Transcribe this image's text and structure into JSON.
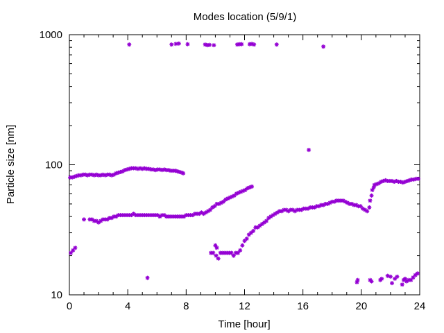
{
  "chart_data": {
    "type": "scatter",
    "title": "Modes location (5/9/1)",
    "xlabel": "Time [hour]",
    "ylabel": "Particle size [nm]",
    "xlim": [
      0,
      24
    ],
    "ylim": [
      10,
      1000
    ],
    "yscale": "log",
    "grid": false,
    "legend": "none",
    "marker_color": "#9400d3",
    "x_ticks": [
      0,
      4,
      8,
      12,
      16,
      20,
      24
    ],
    "x_tick_labels": [
      "0",
      "4",
      "8",
      "12",
      "16",
      "20",
      "24"
    ],
    "y_ticks": [
      10,
      100,
      1000
    ],
    "y_tick_labels": [
      "10",
      "100",
      "1000"
    ],
    "series": [
      {
        "points": [
          [
            0.05,
            80
          ],
          [
            0.2,
            80
          ],
          [
            0.35,
            81
          ],
          [
            0.5,
            82
          ],
          [
            0.65,
            83
          ],
          [
            0.8,
            83
          ],
          [
            0.95,
            84
          ],
          [
            1.1,
            84
          ],
          [
            1.25,
            83
          ],
          [
            1.4,
            84
          ],
          [
            1.55,
            84
          ],
          [
            1.7,
            83
          ],
          [
            1.85,
            84
          ],
          [
            2.0,
            83
          ],
          [
            2.15,
            83
          ],
          [
            2.3,
            84
          ],
          [
            2.45,
            83
          ],
          [
            2.6,
            84
          ],
          [
            2.75,
            84
          ],
          [
            2.9,
            83
          ],
          [
            3.05,
            84
          ],
          [
            3.2,
            86
          ],
          [
            3.35,
            87
          ],
          [
            3.5,
            88
          ],
          [
            3.65,
            89
          ],
          [
            3.8,
            91
          ],
          [
            3.95,
            92
          ],
          [
            4.1,
            93
          ],
          [
            4.25,
            94
          ],
          [
            4.4,
            94
          ],
          [
            4.55,
            94
          ],
          [
            4.7,
            93
          ],
          [
            4.85,
            94
          ],
          [
            5.0,
            93
          ],
          [
            5.15,
            94
          ],
          [
            5.3,
            93
          ],
          [
            5.45,
            93
          ],
          [
            5.6,
            92
          ],
          [
            5.75,
            92
          ],
          [
            5.9,
            91
          ],
          [
            6.05,
            92
          ],
          [
            6.2,
            92
          ],
          [
            6.35,
            91
          ],
          [
            6.5,
            92
          ],
          [
            6.65,
            91
          ],
          [
            6.8,
            91
          ],
          [
            6.95,
            90
          ],
          [
            7.1,
            90
          ],
          [
            7.25,
            90
          ],
          [
            7.4,
            89
          ],
          [
            7.55,
            88
          ],
          [
            7.7,
            87
          ],
          [
            7.8,
            86
          ],
          [
            0.1,
            21
          ],
          [
            0.25,
            22
          ],
          [
            0.4,
            23
          ],
          [
            1.0,
            38
          ],
          [
            1.4,
            38
          ],
          [
            1.55,
            38
          ],
          [
            1.7,
            37
          ],
          [
            1.85,
            37
          ],
          [
            2.0,
            36
          ],
          [
            2.15,
            37
          ],
          [
            2.3,
            38
          ],
          [
            2.45,
            38
          ],
          [
            2.6,
            38
          ],
          [
            2.75,
            39
          ],
          [
            2.9,
            39
          ],
          [
            3.05,
            40
          ],
          [
            3.2,
            40
          ],
          [
            3.35,
            41
          ],
          [
            3.5,
            41
          ],
          [
            3.65,
            41
          ],
          [
            3.8,
            41
          ],
          [
            3.95,
            41
          ],
          [
            4.1,
            41
          ],
          [
            4.25,
            41
          ],
          [
            4.4,
            42
          ],
          [
            4.55,
            41
          ],
          [
            4.7,
            41
          ],
          [
            4.85,
            41
          ],
          [
            5.0,
            41
          ],
          [
            5.15,
            41
          ],
          [
            5.3,
            41
          ],
          [
            5.45,
            41
          ],
          [
            5.6,
            41
          ],
          [
            5.75,
            41
          ],
          [
            5.9,
            41
          ],
          [
            6.05,
            41
          ],
          [
            6.2,
            40
          ],
          [
            6.35,
            41
          ],
          [
            6.5,
            41
          ],
          [
            6.65,
            40
          ],
          [
            6.8,
            40
          ],
          [
            6.95,
            40
          ],
          [
            7.1,
            40
          ],
          [
            7.25,
            40
          ],
          [
            7.4,
            40
          ],
          [
            7.55,
            40
          ],
          [
            7.7,
            40
          ],
          [
            7.85,
            40
          ],
          [
            8.0,
            41
          ],
          [
            8.15,
            41
          ],
          [
            8.3,
            41
          ],
          [
            8.45,
            41
          ],
          [
            8.6,
            42
          ],
          [
            8.75,
            42
          ],
          [
            8.9,
            42
          ],
          [
            9.05,
            43
          ],
          [
            9.2,
            42
          ],
          [
            9.35,
            43
          ],
          [
            9.5,
            44
          ],
          [
            9.65,
            45
          ],
          [
            9.8,
            47
          ],
          [
            9.95,
            48
          ],
          [
            10.1,
            50
          ],
          [
            10.25,
            50
          ],
          [
            10.4,
            51
          ],
          [
            10.55,
            52
          ],
          [
            10.7,
            54
          ],
          [
            10.85,
            55
          ],
          [
            11.0,
            56
          ],
          [
            11.15,
            57
          ],
          [
            11.3,
            58
          ],
          [
            11.45,
            60
          ],
          [
            11.6,
            61
          ],
          [
            11.75,
            62
          ],
          [
            11.9,
            63
          ],
          [
            12.05,
            64
          ],
          [
            12.2,
            66
          ],
          [
            12.35,
            67
          ],
          [
            12.5,
            68
          ],
          [
            9.7,
            21
          ],
          [
            9.85,
            21
          ],
          [
            10.0,
            24
          ],
          [
            10.1,
            23
          ],
          [
            10.05,
            20
          ],
          [
            10.2,
            19
          ],
          [
            10.35,
            21
          ],
          [
            10.5,
            21
          ],
          [
            10.65,
            21
          ],
          [
            10.8,
            21
          ],
          [
            10.95,
            21
          ],
          [
            11.1,
            21
          ],
          [
            11.25,
            20
          ],
          [
            11.4,
            21
          ],
          [
            11.55,
            21
          ],
          [
            11.7,
            22
          ],
          [
            11.85,
            24
          ],
          [
            12.0,
            26
          ],
          [
            12.15,
            27
          ],
          [
            12.3,
            29
          ],
          [
            12.45,
            30
          ],
          [
            12.6,
            31
          ],
          [
            12.75,
            33
          ],
          [
            12.9,
            33
          ],
          [
            13.05,
            34
          ],
          [
            13.2,
            35
          ],
          [
            13.35,
            36
          ],
          [
            13.5,
            37
          ],
          [
            13.65,
            39
          ],
          [
            13.8,
            40
          ],
          [
            13.95,
            41
          ],
          [
            14.1,
            42
          ],
          [
            14.25,
            43
          ],
          [
            14.4,
            44
          ],
          [
            14.55,
            44
          ],
          [
            14.7,
            45
          ],
          [
            14.85,
            45
          ],
          [
            15.0,
            44
          ],
          [
            15.15,
            45
          ],
          [
            15.3,
            45
          ],
          [
            15.45,
            44
          ],
          [
            15.6,
            45
          ],
          [
            15.75,
            45
          ],
          [
            15.9,
            45
          ],
          [
            16.05,
            46
          ],
          [
            16.2,
            46
          ],
          [
            16.35,
            46
          ],
          [
            16.5,
            47
          ],
          [
            16.65,
            47
          ],
          [
            16.8,
            47
          ],
          [
            16.95,
            48
          ],
          [
            17.1,
            48
          ],
          [
            17.25,
            49
          ],
          [
            17.4,
            49
          ],
          [
            17.55,
            50
          ],
          [
            17.7,
            50
          ],
          [
            17.85,
            51
          ],
          [
            18.0,
            52
          ],
          [
            18.15,
            52
          ],
          [
            18.3,
            53
          ],
          [
            18.45,
            53
          ],
          [
            18.6,
            53
          ],
          [
            18.75,
            53
          ],
          [
            18.9,
            52
          ],
          [
            19.05,
            51
          ],
          [
            19.2,
            50
          ],
          [
            19.35,
            50
          ],
          [
            19.5,
            49
          ],
          [
            19.65,
            49
          ],
          [
            19.8,
            48
          ],
          [
            19.95,
            48
          ],
          [
            20.1,
            46
          ],
          [
            20.25,
            45
          ],
          [
            20.4,
            44
          ],
          [
            20.55,
            47
          ],
          [
            20.6,
            53
          ],
          [
            20.7,
            58
          ],
          [
            20.75,
            64
          ],
          [
            20.85,
            67
          ],
          [
            20.9,
            70
          ],
          [
            21.05,
            71
          ],
          [
            21.2,
            72
          ],
          [
            21.35,
            74
          ],
          [
            21.5,
            75
          ],
          [
            21.65,
            76
          ],
          [
            21.8,
            75
          ],
          [
            21.95,
            75
          ],
          [
            22.1,
            75
          ],
          [
            22.25,
            74
          ],
          [
            22.4,
            75
          ],
          [
            22.55,
            74
          ],
          [
            22.7,
            74
          ],
          [
            22.85,
            73
          ],
          [
            23.0,
            74
          ],
          [
            23.15,
            75
          ],
          [
            23.3,
            76
          ],
          [
            23.45,
            77
          ],
          [
            23.6,
            77
          ],
          [
            23.75,
            78
          ],
          [
            23.9,
            78
          ],
          [
            4.1,
            840
          ],
          [
            7.0,
            840
          ],
          [
            7.3,
            850
          ],
          [
            7.5,
            855
          ],
          [
            8.1,
            845
          ],
          [
            9.3,
            840
          ],
          [
            9.45,
            830
          ],
          [
            9.6,
            835
          ],
          [
            9.9,
            830
          ],
          [
            11.5,
            840
          ],
          [
            11.65,
            845
          ],
          [
            11.8,
            845
          ],
          [
            12.35,
            845
          ],
          [
            12.5,
            850
          ],
          [
            12.65,
            840
          ],
          [
            14.2,
            840
          ],
          [
            17.4,
            810
          ],
          [
            16.4,
            130
          ],
          [
            5.35,
            13.5
          ],
          [
            19.7,
            12.5
          ],
          [
            19.75,
            13
          ],
          [
            20.6,
            13
          ],
          [
            20.7,
            12.7
          ],
          [
            21.3,
            13
          ],
          [
            21.4,
            13.3
          ],
          [
            21.8,
            14
          ],
          [
            22.0,
            13.8
          ],
          [
            22.1,
            12.3
          ],
          [
            22.3,
            13.3
          ],
          [
            22.45,
            13.8
          ],
          [
            22.8,
            12
          ],
          [
            22.9,
            13
          ],
          [
            23.0,
            13.3
          ],
          [
            23.1,
            12.7
          ],
          [
            23.25,
            13
          ],
          [
            23.4,
            13
          ],
          [
            23.55,
            13.6
          ],
          [
            23.7,
            14.2
          ],
          [
            23.85,
            14.6
          ]
        ]
      }
    ]
  }
}
